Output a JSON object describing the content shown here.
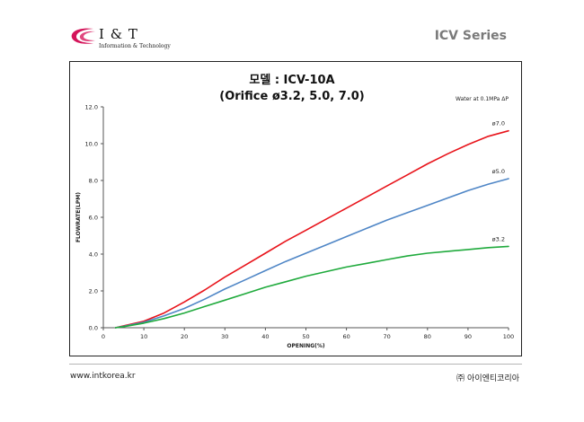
{
  "header": {
    "logo_name": "I & T",
    "logo_sub": "Information & Technology",
    "series_title": "ICV Series"
  },
  "footer": {
    "website": "www.intkorea.kr",
    "company": "㈜ 아이엔티코리아"
  },
  "colors": {
    "d7_0": "#e8141b",
    "d5_0": "#4f86c6",
    "d3_2": "#1faa3c",
    "logo": "#d4145a"
  },
  "chart_data": {
    "type": "line",
    "title": "모델 : ICV-10A",
    "subtitle": "(Orifice ø3.2, 5.0, 7.0)",
    "annotation": "Water at 0.1MPa ΔP",
    "xlabel": "OPENING(%)",
    "ylabel": "FLOWRATE(LPM)",
    "xlim": [
      0,
      100
    ],
    "ylim": [
      0,
      12
    ],
    "xticks": [
      "0",
      "10",
      "20",
      "30",
      "40",
      "50",
      "60",
      "70",
      "80",
      "90",
      "100"
    ],
    "yticks": [
      "0.0",
      "2.0",
      "4.0",
      "6.0",
      "8.0",
      "10.0",
      "12.0"
    ],
    "grid": false,
    "x": [
      3,
      5,
      10,
      15,
      20,
      25,
      30,
      35,
      40,
      45,
      50,
      55,
      60,
      65,
      70,
      75,
      80,
      85,
      90,
      95,
      100
    ],
    "series": [
      {
        "name": "ø7.0",
        "color_key": "d7_0",
        "values": [
          0.0,
          0.1,
          0.35,
          0.8,
          1.4,
          2.05,
          2.75,
          3.4,
          4.05,
          4.7,
          5.3,
          5.9,
          6.5,
          7.1,
          7.7,
          8.3,
          8.9,
          9.45,
          9.95,
          10.4,
          10.7
        ]
      },
      {
        "name": "ø5.0",
        "color_key": "d5_0",
        "values": [
          0.0,
          0.08,
          0.3,
          0.65,
          1.05,
          1.55,
          2.1,
          2.6,
          3.1,
          3.6,
          4.05,
          4.5,
          4.95,
          5.4,
          5.85,
          6.25,
          6.65,
          7.05,
          7.45,
          7.8,
          8.1
        ]
      },
      {
        "name": "ø3.2",
        "color_key": "d3_2",
        "values": [
          0.0,
          0.06,
          0.25,
          0.5,
          0.8,
          1.15,
          1.5,
          1.85,
          2.2,
          2.5,
          2.8,
          3.05,
          3.3,
          3.5,
          3.7,
          3.9,
          4.05,
          4.15,
          4.25,
          4.35,
          4.42
        ]
      }
    ]
  }
}
